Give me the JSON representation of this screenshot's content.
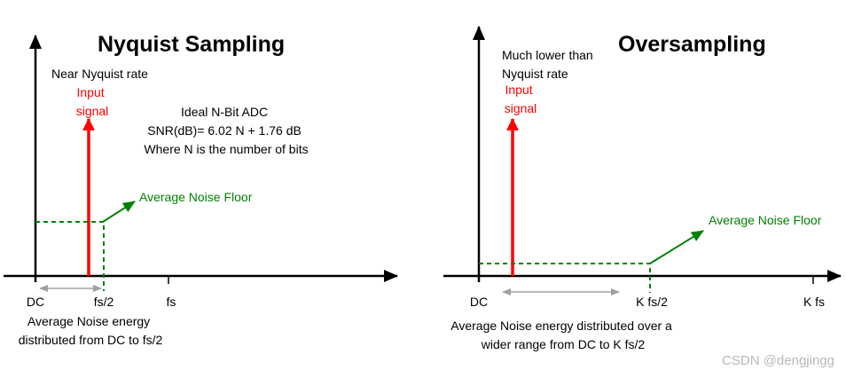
{
  "left_panel": {
    "title": "Nyquist Sampling",
    "rate_note": "Near Nyquist rate",
    "input_label": [
      "Input",
      "signal"
    ],
    "adc_note": [
      "Ideal N-Bit ADC",
      "SNR(dB)= 6.02 N + 1.76 dB",
      "Where N is the number of bits"
    ],
    "noise_floor_label": "Average Noise Floor",
    "tick_labels": {
      "dc": "DC",
      "half": "fs/2",
      "full": "fs"
    },
    "caption": [
      "Average Noise energy",
      "distributed from DC to fs/2"
    ]
  },
  "right_panel": {
    "title": "Oversampling",
    "rate_note": [
      "Much lower than",
      "Nyquist rate"
    ],
    "input_label": [
      "Input",
      "signal"
    ],
    "noise_floor_label": "Average Noise Floor",
    "tick_labels": {
      "dc": "DC",
      "half": "K fs/2",
      "full": "K fs"
    },
    "caption": [
      "Average Noise energy distributed over a",
      "wider range from DC to K fs/2"
    ]
  },
  "watermark": "CSDN @dengjingg",
  "colors": {
    "signal": "#ff0000",
    "noise": "#008000",
    "axis": "#000000",
    "span_arrow": "#a0a0a0"
  }
}
